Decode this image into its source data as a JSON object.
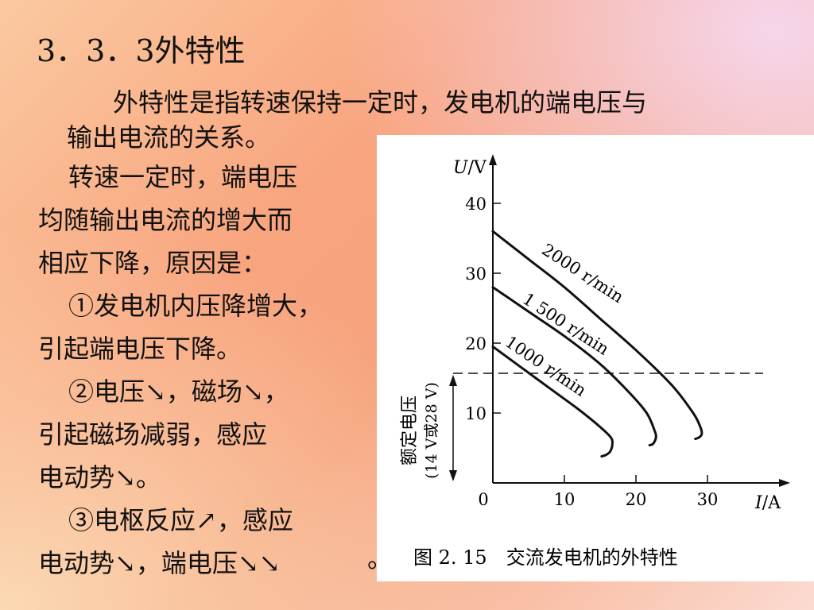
{
  "title": "3．3．3外特性",
  "intro_line1": "外特性是指转速保持一定时，发电机的端电压与",
  "intro_line2": "输出电流的关系。",
  "body_lines": [
    "转速一定时，端电压",
    "均随输出电流的增大而",
    "相应下降，原因是：",
    "①发电机内压降增大，",
    "引起端电压下降。",
    "②电压↘，磁场↘，",
    "引起磁场减弱，感应",
    "电动势↘。",
    "③电枢反应↗，感应",
    "电动势↘，端电压↘↘"
  ],
  "tail_punct": "。",
  "figure": {
    "caption": "图 2. 15　交流发电机的外特性",
    "y_axis_label_italic": "U",
    "y_axis_label_unit": "/V",
    "x_axis_label_italic": "I",
    "x_axis_label_unit": "/A",
    "y_ticks": [
      "10",
      "20",
      "30",
      "40"
    ],
    "x_ticks": [
      "0",
      "10",
      "20",
      "30"
    ],
    "rated_voltage_label": "额定电压",
    "rated_voltage_sub": "(14 V或28 V)",
    "colors": {
      "ink": "#111111",
      "paper": "#ffffff"
    }
  },
  "chart_data": {
    "type": "line",
    "xlabel": "I/A",
    "ylabel": "U/V",
    "xlim": [
      0,
      40
    ],
    "ylim": [
      0,
      45
    ],
    "rated_voltage_line_y": 15.5,
    "series": [
      {
        "name": "2000 r/min",
        "x": [
          0,
          5,
          10,
          15,
          20,
          25,
          28,
          29,
          29.2,
          28.8,
          28.3
        ],
        "y": [
          36,
          32,
          28,
          23.5,
          19,
          14,
          10,
          8,
          7,
          6.5,
          6.3
        ]
      },
      {
        "name": "1 500 r/min",
        "x": [
          0,
          5,
          10,
          15,
          19,
          21.5,
          22.6,
          22.8,
          22.4,
          21.9
        ],
        "y": [
          28,
          24.5,
          21,
          17,
          13,
          10,
          7.5,
          6.5,
          5.6,
          5.4
        ]
      },
      {
        "name": "1000 r/min",
        "x": [
          0,
          4,
          8,
          12,
          15,
          16.5,
          16.7,
          16.4,
          15.8,
          15.2
        ],
        "y": [
          19.5,
          16.5,
          13.5,
          10.5,
          8,
          6.5,
          5.5,
          4.5,
          4.0,
          3.8
        ]
      }
    ]
  }
}
